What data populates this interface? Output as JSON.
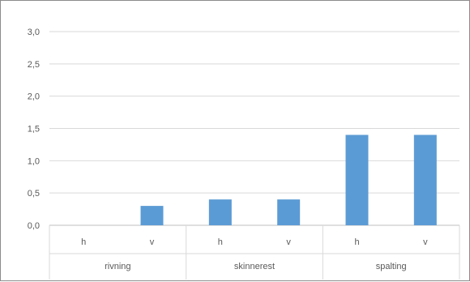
{
  "chart_data": {
    "type": "bar",
    "title": "",
    "xlabel": "",
    "ylabel": "",
    "ylim": [
      0,
      3.0
    ],
    "yticks": [
      "0,0",
      "0,5",
      "1,0",
      "1,5",
      "2,0",
      "2,5",
      "3,0"
    ],
    "grid": true,
    "legend": "none",
    "groups": [
      {
        "label": "rivning",
        "categories": [
          "h",
          "v"
        ]
      },
      {
        "label": "skinnerest",
        "categories": [
          "h",
          "v"
        ]
      },
      {
        "label": "spalting",
        "categories": [
          "h",
          "v"
        ]
      }
    ],
    "series": [
      {
        "values": [
          0.0,
          0.3,
          0.4,
          0.4,
          1.4,
          1.4
        ]
      }
    ],
    "bar_color": "#5b9bd5",
    "grid_color": "#d9d9d9",
    "text_color": "#595959"
  }
}
